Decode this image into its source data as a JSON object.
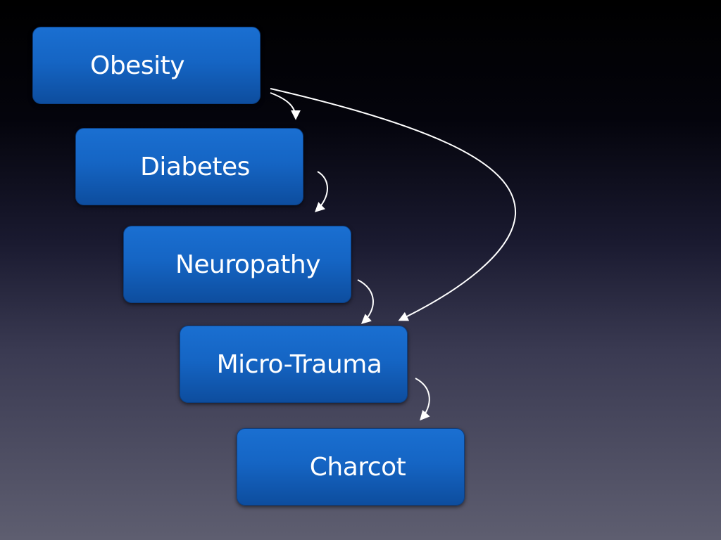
{
  "diagram": {
    "nodes": [
      {
        "id": "obesity",
        "label": "Obesity"
      },
      {
        "id": "diabetes",
        "label": "Diabetes"
      },
      {
        "id": "neuropathy",
        "label": "Neuropathy"
      },
      {
        "id": "microtrauma",
        "label": "Micro-Trauma"
      },
      {
        "id": "charcot",
        "label": "Charcot"
      }
    ],
    "edges": [
      {
        "from": "obesity",
        "to": "diabetes"
      },
      {
        "from": "diabetes",
        "to": "neuropathy"
      },
      {
        "from": "neuropathy",
        "to": "microtrauma"
      },
      {
        "from": "microtrauma",
        "to": "charcot"
      },
      {
        "from": "obesity",
        "to": "microtrauma"
      }
    ]
  },
  "colors": {
    "box_top": "#1a6fd1",
    "box_bottom": "#0d4d9e",
    "text": "#ffffff",
    "arrow": "#ffffff"
  }
}
